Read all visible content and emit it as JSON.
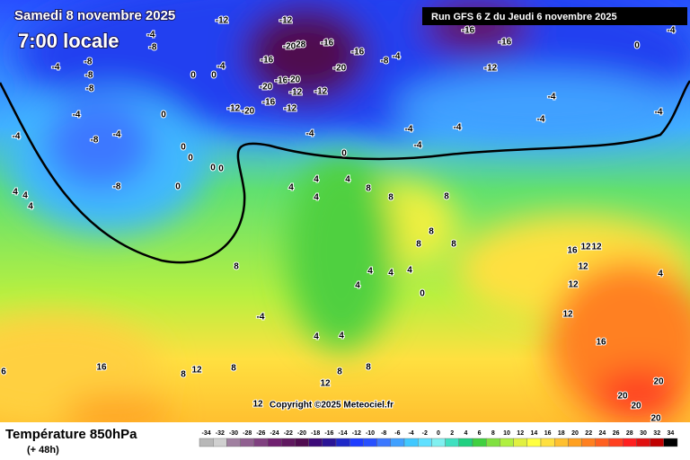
{
  "header": {
    "date": "Samedi 8 novembre 2025",
    "time": "7:00 locale",
    "run": "Run GFS 6 Z du Jeudi 6 novembre 2025"
  },
  "map": {
    "copyright": "Copyright ©2025 Meteociel.fr",
    "contour_labels": [
      -12,
      -12,
      -28,
      -20,
      -16,
      -16,
      -20,
      -16,
      -20,
      -20,
      -16,
      -8,
      -4,
      -12,
      -12,
      -16,
      -12,
      -12,
      -20,
      0,
      0,
      -4,
      -4,
      -8,
      -8,
      -8,
      -8,
      -4,
      -4,
      -8,
      -4,
      -4,
      -8,
      4,
      4,
      4,
      0,
      0,
      0,
      0,
      0,
      0,
      0,
      -4,
      -4,
      -4,
      -4,
      -16,
      -16,
      -12,
      -4,
      -4,
      0,
      -4,
      -4,
      4,
      4,
      4,
      4,
      8,
      8,
      8,
      8,
      8,
      8,
      8,
      -4,
      4,
      4,
      4,
      4,
      4,
      4,
      0,
      16,
      12,
      12,
      12,
      12,
      12,
      16,
      4,
      12,
      8,
      16,
      8,
      8,
      12,
      12,
      20,
      20,
      20,
      20,
      6,
      8
    ]
  },
  "legend": {
    "title": "Température 850hPa",
    "lead": "(+ 48h)",
    "values": [
      -34,
      -32,
      -30,
      -28,
      -26,
      -24,
      -22,
      -20,
      -18,
      -16,
      -14,
      -12,
      -10,
      -8,
      -6,
      -4,
      -2,
      0,
      2,
      4,
      6,
      8,
      10,
      12,
      14,
      16,
      18,
      20,
      22,
      24,
      26,
      28,
      30,
      32,
      34
    ],
    "colors": [
      "#b8b8b8",
      "#d0d0d0",
      "#a080a0",
      "#906090",
      "#804080",
      "#702070",
      "#601860",
      "#500c50",
      "#3c0a78",
      "#2a1496",
      "#1e28c8",
      "#1e3cff",
      "#2850ff",
      "#3c78ff",
      "#40a0ff",
      "#40c8ff",
      "#60e0ff",
      "#80f0f0",
      "#40e0c0",
      "#20d080",
      "#40d040",
      "#80e040",
      "#b0f040",
      "#e0f040",
      "#ffff40",
      "#ffe040",
      "#ffc030",
      "#ffa020",
      "#ff8020",
      "#ff6020",
      "#ff4020",
      "#ff2020",
      "#e01010",
      "#c00000",
      "#000000"
    ]
  }
}
